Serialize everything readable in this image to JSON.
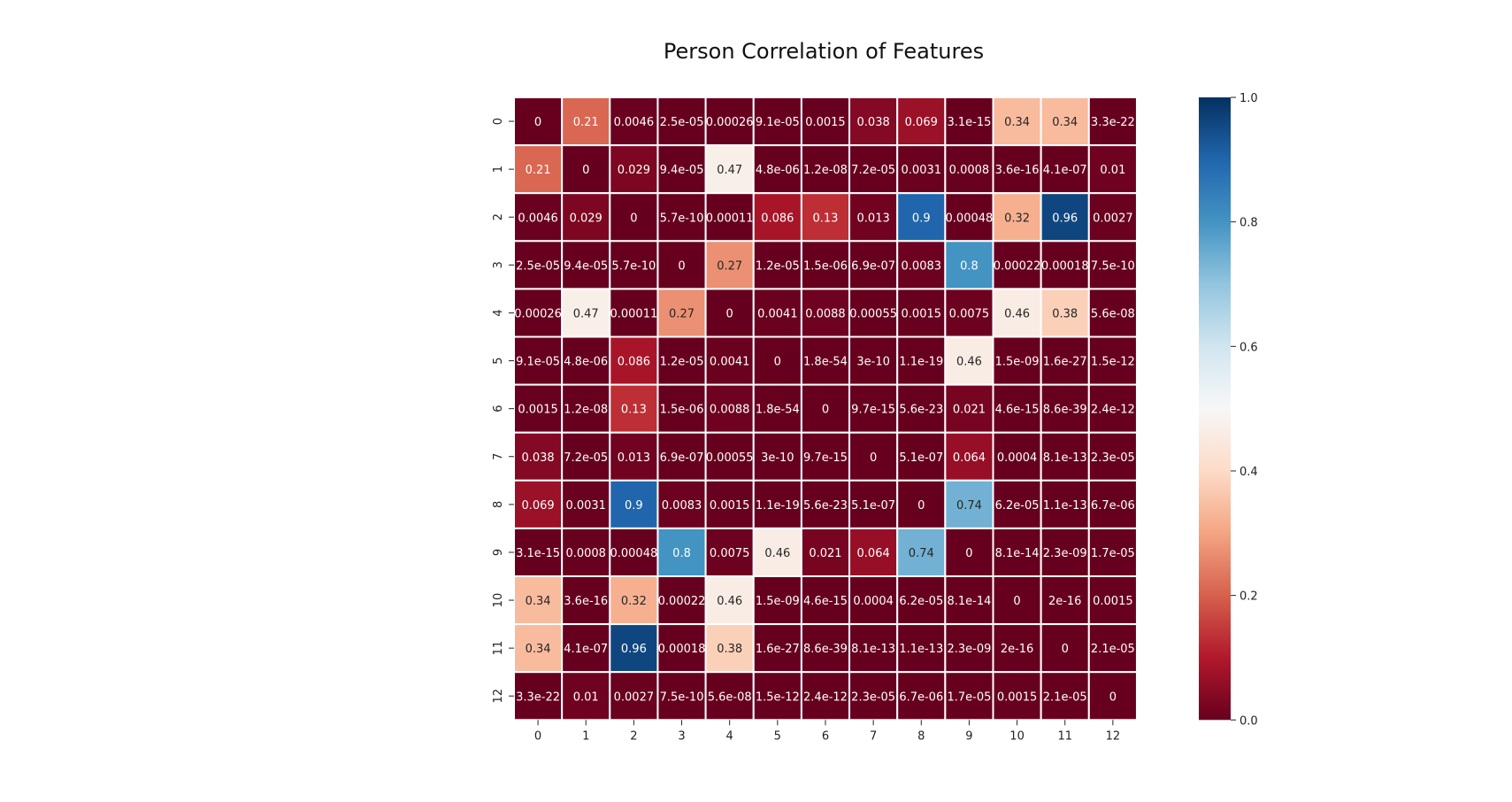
{
  "chart_data": {
    "type": "heatmap",
    "title": "Person Correlation of Features",
    "x_categories": [
      "0",
      "1",
      "2",
      "3",
      "4",
      "5",
      "6",
      "7",
      "8",
      "9",
      "10",
      "11",
      "12"
    ],
    "y_categories": [
      "0",
      "1",
      "2",
      "3",
      "4",
      "5",
      "6",
      "7",
      "8",
      "9",
      "10",
      "11",
      "12"
    ],
    "values": [
      [
        0,
        0.21,
        0.0046,
        2.5e-05,
        0.00026,
        9.1e-05,
        0.0015,
        0.038,
        0.069,
        3.1e-15,
        0.34,
        0.34,
        3.3e-22
      ],
      [
        0.21,
        0,
        0.029,
        9.4e-05,
        0.47,
        4.8e-06,
        1.2e-08,
        7.2e-05,
        0.0031,
        0.0008,
        3.6e-16,
        4.1e-07,
        0.01
      ],
      [
        0.0046,
        0.029,
        0,
        5.7e-10,
        0.00011,
        0.086,
        0.13,
        0.013,
        0.9,
        0.00048,
        0.32,
        0.96,
        0.0027
      ],
      [
        2.5e-05,
        9.4e-05,
        5.7e-10,
        0,
        0.27,
        1.2e-05,
        1.5e-06,
        6.9e-07,
        0.0083,
        0.8,
        0.00022,
        0.00018,
        7.5e-10
      ],
      [
        0.00026,
        0.47,
        0.00011,
        0.27,
        0,
        0.0041,
        0.0088,
        0.00055,
        0.0015,
        0.0075,
        0.46,
        0.38,
        5.6e-08
      ],
      [
        9.1e-05,
        4.8e-06,
        0.086,
        1.2e-05,
        0.0041,
        0,
        1.8e-54,
        3e-10,
        1.1e-19,
        0.46,
        1.5e-09,
        1.6e-27,
        1.5e-12
      ],
      [
        0.0015,
        1.2e-08,
        0.13,
        1.5e-06,
        0.0088,
        1.8e-54,
        0,
        9.7e-15,
        5.6e-23,
        0.021,
        4.6e-15,
        8.6e-39,
        2.4e-12
      ],
      [
        0.038,
        7.2e-05,
        0.013,
        6.9e-07,
        0.00055,
        3e-10,
        9.7e-15,
        0,
        5.1e-07,
        0.064,
        0.0004,
        8.1e-13,
        2.3e-05
      ],
      [
        0.069,
        0.0031,
        0.9,
        0.0083,
        0.0015,
        1.1e-19,
        5.6e-23,
        5.1e-07,
        0,
        0.74,
        6.2e-05,
        1.1e-13,
        6.7e-06
      ],
      [
        3.1e-15,
        0.0008,
        0.00048,
        0.8,
        0.0075,
        0.46,
        0.021,
        0.064,
        0.74,
        0,
        8.1e-14,
        2.3e-09,
        1.7e-05
      ],
      [
        0.34,
        3.6e-16,
        0.32,
        0.00022,
        0.46,
        1.5e-09,
        4.6e-15,
        0.0004,
        6.2e-05,
        8.1e-14,
        0,
        2e-16,
        0.0015
      ],
      [
        0.34,
        4.1e-07,
        0.96,
        0.00018,
        0.38,
        1.6e-27,
        8.6e-39,
        8.1e-13,
        1.1e-13,
        2.3e-09,
        2e-16,
        0,
        2.1e-05
      ],
      [
        3.3e-22,
        0.01,
        0.0027,
        7.5e-10,
        5.6e-08,
        1.5e-12,
        2.4e-12,
        2.3e-05,
        6.7e-06,
        1.7e-05,
        0.0015,
        2.1e-05,
        0
      ]
    ],
    "labels": [
      [
        "0",
        "0.21",
        "0.0046",
        "2.5e-05",
        "0.00026",
        "9.1e-05",
        "0.0015",
        "0.038",
        "0.069",
        "3.1e-15",
        "0.34",
        "0.34",
        "3.3e-22"
      ],
      [
        "0.21",
        "0",
        "0.029",
        "9.4e-05",
        "0.47",
        "4.8e-06",
        "1.2e-08",
        "7.2e-05",
        "0.0031",
        "0.0008",
        "3.6e-16",
        "4.1e-07",
        "0.01"
      ],
      [
        "0.0046",
        "0.029",
        "0",
        "5.7e-10",
        "0.00011",
        "0.086",
        "0.13",
        "0.013",
        "0.9",
        "0.00048",
        "0.32",
        "0.96",
        "0.0027"
      ],
      [
        "2.5e-05",
        "9.4e-05",
        "5.7e-10",
        "0",
        "0.27",
        "1.2e-05",
        "1.5e-06",
        "6.9e-07",
        "0.0083",
        "0.8",
        "0.00022",
        "0.00018",
        "7.5e-10"
      ],
      [
        "0.00026",
        "0.47",
        "0.00011",
        "0.27",
        "0",
        "0.0041",
        "0.0088",
        "0.00055",
        "0.0015",
        "0.0075",
        "0.46",
        "0.38",
        "5.6e-08"
      ],
      [
        "9.1e-05",
        "4.8e-06",
        "0.086",
        "1.2e-05",
        "0.0041",
        "0",
        "1.8e-54",
        "3e-10",
        "1.1e-19",
        "0.46",
        "1.5e-09",
        "1.6e-27",
        "1.5e-12"
      ],
      [
        "0.0015",
        "1.2e-08",
        "0.13",
        "1.5e-06",
        "0.0088",
        "1.8e-54",
        "0",
        "9.7e-15",
        "5.6e-23",
        "0.021",
        "4.6e-15",
        "8.6e-39",
        "2.4e-12"
      ],
      [
        "0.038",
        "7.2e-05",
        "0.013",
        "6.9e-07",
        "0.00055",
        "3e-10",
        "9.7e-15",
        "0",
        "5.1e-07",
        "0.064",
        "0.0004",
        "8.1e-13",
        "2.3e-05"
      ],
      [
        "0.069",
        "0.0031",
        "0.9",
        "0.0083",
        "0.0015",
        "1.1e-19",
        "5.6e-23",
        "5.1e-07",
        "0",
        "0.74",
        "6.2e-05",
        "1.1e-13",
        "6.7e-06"
      ],
      [
        "3.1e-15",
        "0.0008",
        "0.00048",
        "0.8",
        "0.0075",
        "0.46",
        "0.021",
        "0.064",
        "0.74",
        "0",
        "8.1e-14",
        "2.3e-09",
        "1.7e-05"
      ],
      [
        "0.34",
        "3.6e-16",
        "0.32",
        "0.00022",
        "0.46",
        "1.5e-09",
        "4.6e-15",
        "0.0004",
        "6.2e-05",
        "8.1e-14",
        "0",
        "2e-16",
        "0.0015"
      ],
      [
        "0.34",
        "4.1e-07",
        "0.96",
        "0.00018",
        "0.38",
        "1.6e-27",
        "8.6e-39",
        "8.1e-13",
        "1.1e-13",
        "2.3e-09",
        "2e-16",
        "0",
        "2.1e-05"
      ],
      [
        "3.3e-22",
        "0.01",
        "0.0027",
        "7.5e-10",
        "5.6e-08",
        "1.5e-12",
        "2.4e-12",
        "2.3e-05",
        "6.7e-06",
        "1.7e-05",
        "0.0015",
        "2.1e-05",
        "0"
      ]
    ],
    "colormap": "RdBu",
    "vmin": 0,
    "vmax": 1,
    "colorbar_ticks": [
      "0.0",
      "0.2",
      "0.4",
      "0.6",
      "0.8",
      "1.0"
    ],
    "colorbar_position": "right",
    "cell_border_color": "#ffffff",
    "annotated": true
  }
}
